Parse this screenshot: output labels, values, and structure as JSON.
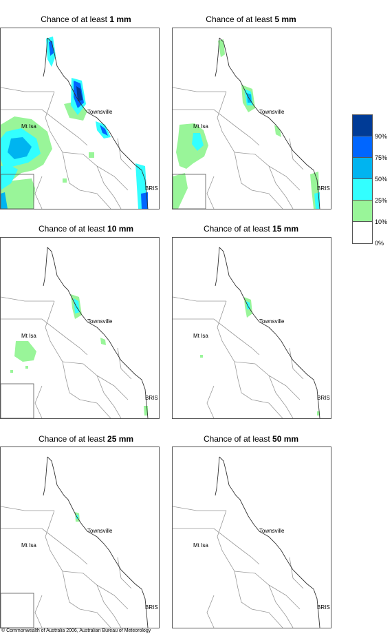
{
  "panels": [
    {
      "title_prefix": "Chance of at least",
      "amount": "1 mm"
    },
    {
      "title_prefix": "Chance of at least",
      "amount": "5 mm"
    },
    {
      "title_prefix": "Chance of at least",
      "amount": "10 mm"
    },
    {
      "title_prefix": "Chance of at least",
      "amount": "15 mm"
    },
    {
      "title_prefix": "Chance of at least",
      "amount": "25 mm"
    },
    {
      "title_prefix": "Chance of at least",
      "amount": "50 mm"
    }
  ],
  "place_labels": {
    "townsville": "Townsville",
    "mt_isa": "Mt Isa",
    "brisbane": "BRIS"
  },
  "legend": {
    "labels": [
      "90%",
      "75%",
      "50%",
      "25%",
      "10%",
      "0%"
    ],
    "colors": [
      "#003b96",
      "#0066ff",
      "#00b4f0",
      "#33ffff",
      "#99f599",
      "#ffffff"
    ]
  },
  "copyright": "© Commonwealth of Australia 2006, Australian Bureau of Meteorology"
}
